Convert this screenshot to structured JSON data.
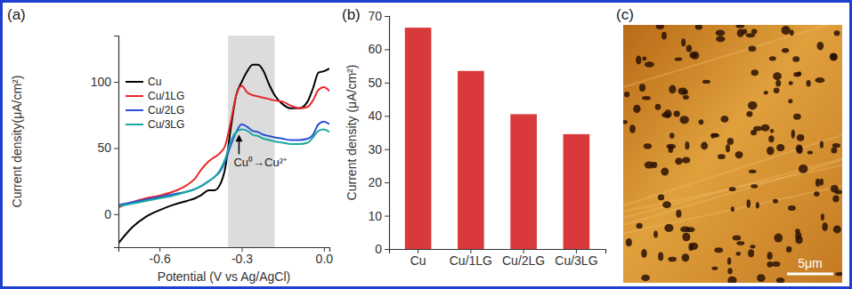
{
  "chart_data": [
    {
      "type": "line",
      "title": "(a)",
      "x_label": "Potential (V vs Ag/AgCl)",
      "y_label": "Current density(μA/cm²)",
      "x": [
        -0.75,
        -0.7,
        -0.65,
        -0.6,
        -0.55,
        -0.5,
        -0.47,
        -0.45,
        -0.42,
        -0.4,
        -0.38,
        -0.36,
        -0.34,
        -0.32,
        -0.3,
        -0.28,
        -0.26,
        -0.24,
        -0.22,
        -0.2,
        -0.18,
        -0.15,
        -0.12,
        -0.09,
        -0.06,
        -0.04,
        -0.02,
        0,
        0.02
      ],
      "series": [
        {
          "name": "Cu",
          "color": "#000000",
          "values": [
            -22,
            -10,
            -2,
            3,
            7,
            10,
            12,
            14,
            18,
            18,
            22,
            35,
            65,
            90,
            100,
            108,
            113,
            113,
            108,
            98,
            90,
            83,
            80,
            80,
            85,
            95,
            107,
            108,
            110
          ]
        },
        {
          "name": "Cu/1LG",
          "color": "#e8262a",
          "values": [
            5,
            9,
            12,
            14,
            17,
            22,
            27,
            33,
            40,
            43,
            46,
            52,
            70,
            90,
            97,
            92,
            90,
            89,
            88,
            87,
            86,
            85,
            82,
            80,
            81,
            86,
            94,
            96,
            93
          ]
        },
        {
          "name": "Cu/2LG",
          "color": "#2a4fd6",
          "values": [
            7,
            9,
            11,
            13,
            15,
            17,
            19,
            21,
            25,
            28,
            32,
            40,
            52,
            62,
            68,
            66,
            63,
            62,
            60,
            59,
            58,
            57,
            56,
            56,
            57,
            60,
            68,
            70,
            68
          ]
        },
        {
          "name": "Cu/3LG",
          "color": "#1aa8a0",
          "values": [
            6,
            8,
            10,
            12,
            14,
            17,
            19,
            21,
            25,
            28,
            33,
            42,
            55,
            62,
            64,
            63,
            60,
            59,
            57,
            56,
            55,
            54,
            53,
            53,
            54,
            58,
            63,
            64,
            62
          ]
        }
      ],
      "xlim": [
        -0.75,
        0.02
      ],
      "xticks": [
        -0.6,
        -0.3,
        {
          "value": 0,
          "label": "0.0"
        }
      ],
      "ylim": [
        -25,
        135
      ],
      "yticks": [
        0,
        50,
        100
      ],
      "highlight": [
        -0.35,
        -0.18
      ],
      "annotations": [
        {
          "text": "Cu⁰→Cu²⁺",
          "x": -0.31,
          "y": 44
        }
      ],
      "legend": "upper left"
    },
    {
      "type": "bar",
      "title": "(b)",
      "y_label": "Current density (μA/cm²)",
      "categories": [
        "Cu",
        "Cu/1LG",
        "Cu/2LG",
        "Cu/3LG"
      ],
      "values": [
        66.5,
        53.5,
        40.5,
        34.5
      ],
      "color": "#d9393a",
      "ylim": [
        0,
        70
      ],
      "yticks": [
        0,
        10,
        20,
        30,
        40,
        50,
        60,
        70
      ]
    },
    {
      "type": "image",
      "title": "(c)",
      "scale_bar": "5μm"
    }
  ]
}
